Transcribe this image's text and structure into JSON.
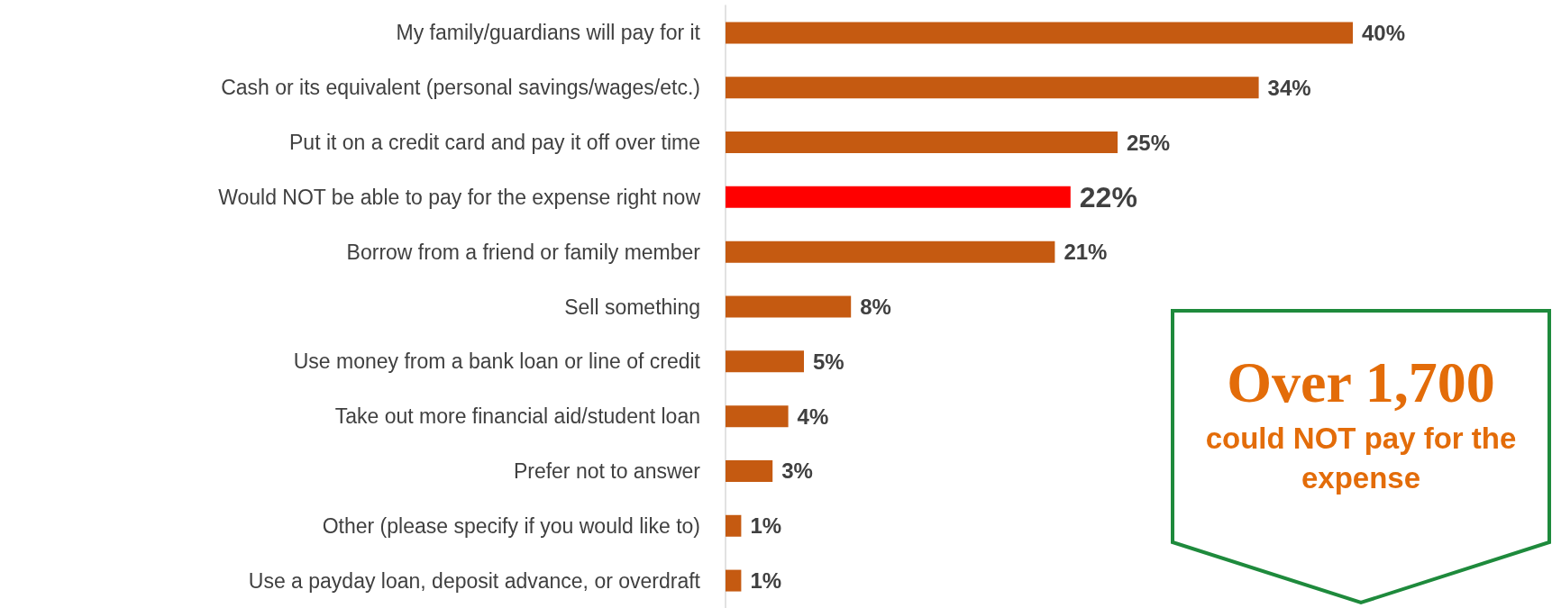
{
  "chart_data": {
    "type": "bar",
    "orientation": "horizontal",
    "categories": [
      "My family/guardians will pay for it",
      "Cash or its equivalent (personal savings/wages/etc.)",
      "Put it on a credit card and pay it off over time",
      "Would NOT be able to pay for the expense right now",
      "Borrow from a friend or family member",
      "Sell something",
      "Use money from a bank loan or line of credit",
      "Take out more financial aid/student loan",
      "Prefer not to answer",
      "Other (please specify if you would like to)",
      "Use a payday loan, deposit advance, or overdraft"
    ],
    "values": [
      40,
      34,
      25,
      22,
      21,
      8,
      5,
      4,
      3,
      1,
      1
    ],
    "value_labels": [
      "40%",
      "34%",
      "25%",
      "22%",
      "21%",
      "8%",
      "5%",
      "4%",
      "3%",
      "1%",
      "1%"
    ],
    "colors": [
      "#c55a11",
      "#c55a11",
      "#c55a11",
      "#ff0000",
      "#c55a11",
      "#c55a11",
      "#c55a11",
      "#c55a11",
      "#c55a11",
      "#c55a11",
      "#c55a11"
    ],
    "tick_labels": "y",
    "annotations": [
      "Over 1,700",
      "could NOT pay for the expense"
    ]
  }
}
